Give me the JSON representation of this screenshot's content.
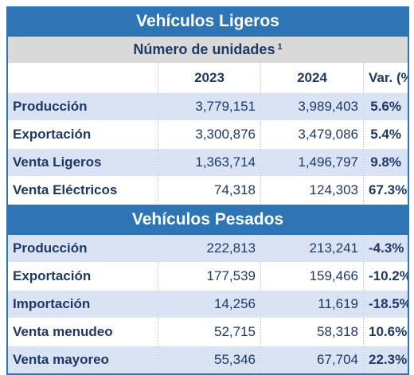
{
  "light": {
    "title": "Vehículos Ligeros",
    "subtitle": "Número de unidades",
    "footnote": "1",
    "columns": [
      "",
      "2023",
      "2024",
      "Var. (%)"
    ],
    "rows": [
      {
        "label": "Producción",
        "v2023": "3,779,151",
        "v2024": "3,989,403",
        "var": "5.6%"
      },
      {
        "label": "Exportación",
        "v2023": "3,300,876",
        "v2024": "3,479,086",
        "var": "5.4%"
      },
      {
        "label": "Venta Ligeros",
        "v2023": "1,363,714",
        "v2024": "1,496,797",
        "var": "9.8%"
      },
      {
        "label": "Venta Eléctricos",
        "v2023": "74,318",
        "v2024": "124,303",
        "var": "67.3%"
      }
    ]
  },
  "heavy": {
    "title": "Vehículos Pesados",
    "rows": [
      {
        "label": "Producción",
        "v2023": "222,813",
        "v2024": "213,241",
        "var": "-4.3%"
      },
      {
        "label": "Exportación",
        "v2023": "177,539",
        "v2024": "159,466",
        "var": "-10.2%"
      },
      {
        "label": "Importación",
        "v2023": "14,256",
        "v2024": "11,619",
        "var": "-18.5%"
      },
      {
        "label": "Venta menudeo",
        "v2023": "52,715",
        "v2024": "58,318",
        "var": "10.6%"
      },
      {
        "label": "Venta mayoreo",
        "v2023": "55,346",
        "v2024": "67,704",
        "var": "22.3%"
      }
    ]
  },
  "colors": {
    "header_blue": "#2e75b6",
    "row_band": "#dae3f3",
    "subheader_gray": "#d9d9d9",
    "text_navy": "#1f3864"
  }
}
